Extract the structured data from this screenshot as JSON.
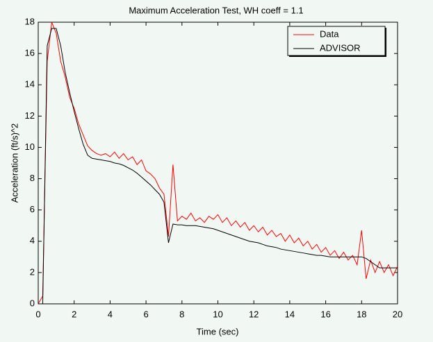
{
  "chart_data": {
    "type": "line",
    "title": "Maximum Acceleration Test, WH coeff = 1.1",
    "x_label": "Time (sec)",
    "y_label": "Acceleration (ft/s)^2",
    "x": [
      0,
      0.25,
      0.5,
      0.75,
      1,
      1.25,
      1.5,
      1.75,
      2,
      2.25,
      2.5,
      2.75,
      3,
      3.25,
      3.5,
      3.75,
      4,
      4.25,
      4.5,
      4.75,
      5,
      5.25,
      5.5,
      5.75,
      6,
      6.25,
      6.5,
      6.75,
      7,
      7.25,
      7.5,
      7.75,
      8,
      8.25,
      8.5,
      8.75,
      9,
      9.25,
      9.5,
      9.75,
      10,
      10.25,
      10.5,
      10.75,
      11,
      11.25,
      11.5,
      11.75,
      12,
      12.25,
      12.5,
      12.75,
      13,
      13.25,
      13.5,
      13.75,
      14,
      14.25,
      14.5,
      14.75,
      15,
      15.25,
      15.5,
      15.75,
      16,
      16.25,
      16.5,
      16.75,
      17,
      17.25,
      17.5,
      17.75,
      18,
      18.25,
      18.5,
      18.75,
      19,
      19.25,
      19.5,
      19.75,
      20
    ],
    "series": [
      {
        "name": "Data",
        "color": "#ff0000",
        "values": [
          0,
          0.5,
          15.5,
          18.0,
          17.3,
          15.5,
          14.5,
          13.2,
          12.5,
          11.5,
          10.8,
          10.1,
          9.8,
          9.6,
          9.5,
          9.6,
          9.4,
          9.7,
          9.3,
          9.6,
          9.2,
          9.4,
          8.9,
          9.2,
          8.5,
          8.3,
          8.0,
          7.4,
          7.0,
          4.3,
          8.9,
          5.3,
          5.6,
          5.4,
          5.8,
          5.3,
          5.5,
          5.2,
          5.6,
          5.4,
          5.7,
          5.2,
          5.5,
          5.0,
          5.3,
          4.9,
          5.2,
          4.7,
          5.0,
          4.6,
          4.9,
          4.4,
          4.7,
          4.3,
          4.5,
          4.0,
          4.4,
          3.9,
          4.2,
          3.7,
          4.0,
          3.5,
          3.8,
          3.3,
          3.6,
          3.1,
          3.4,
          2.9,
          3.3,
          2.8,
          3.1,
          2.5,
          4.7,
          1.6,
          2.8,
          2.0,
          2.7,
          2.0,
          2.5,
          1.8,
          2.4
        ]
      },
      {
        "name": "ADVISOR",
        "color": "#000000",
        "values": [
          0,
          0,
          16.5,
          17.6,
          17.6,
          16.5,
          14.8,
          13.5,
          12.3,
          11.2,
          10.2,
          9.5,
          9.3,
          9.25,
          9.2,
          9.15,
          9.1,
          9.0,
          8.95,
          8.85,
          8.7,
          8.55,
          8.35,
          8.1,
          7.85,
          7.6,
          7.3,
          7.0,
          6.5,
          3.9,
          5.1,
          5.05,
          5.05,
          5.0,
          5.0,
          5.0,
          4.95,
          4.9,
          4.85,
          4.8,
          4.7,
          4.6,
          4.5,
          4.4,
          4.3,
          4.2,
          4.1,
          4.0,
          3.95,
          3.9,
          3.8,
          3.7,
          3.65,
          3.6,
          3.5,
          3.45,
          3.4,
          3.35,
          3.3,
          3.25,
          3.2,
          3.15,
          3.1,
          3.1,
          3.05,
          3.0,
          3.0,
          3.0,
          3.0,
          3.0,
          3.0,
          3.0,
          3.0,
          2.9,
          2.7,
          2.5,
          2.3,
          2.3,
          2.3,
          2.3,
          2.3
        ]
      }
    ],
    "xlim": [
      0,
      20
    ],
    "xticks": [
      0,
      2,
      4,
      6,
      8,
      10,
      12,
      14,
      16,
      18,
      20
    ],
    "ylim": [
      0,
      18
    ],
    "yticks": [
      0,
      2,
      4,
      6,
      8,
      10,
      12,
      14,
      16,
      18
    ],
    "legend": "upper right"
  }
}
